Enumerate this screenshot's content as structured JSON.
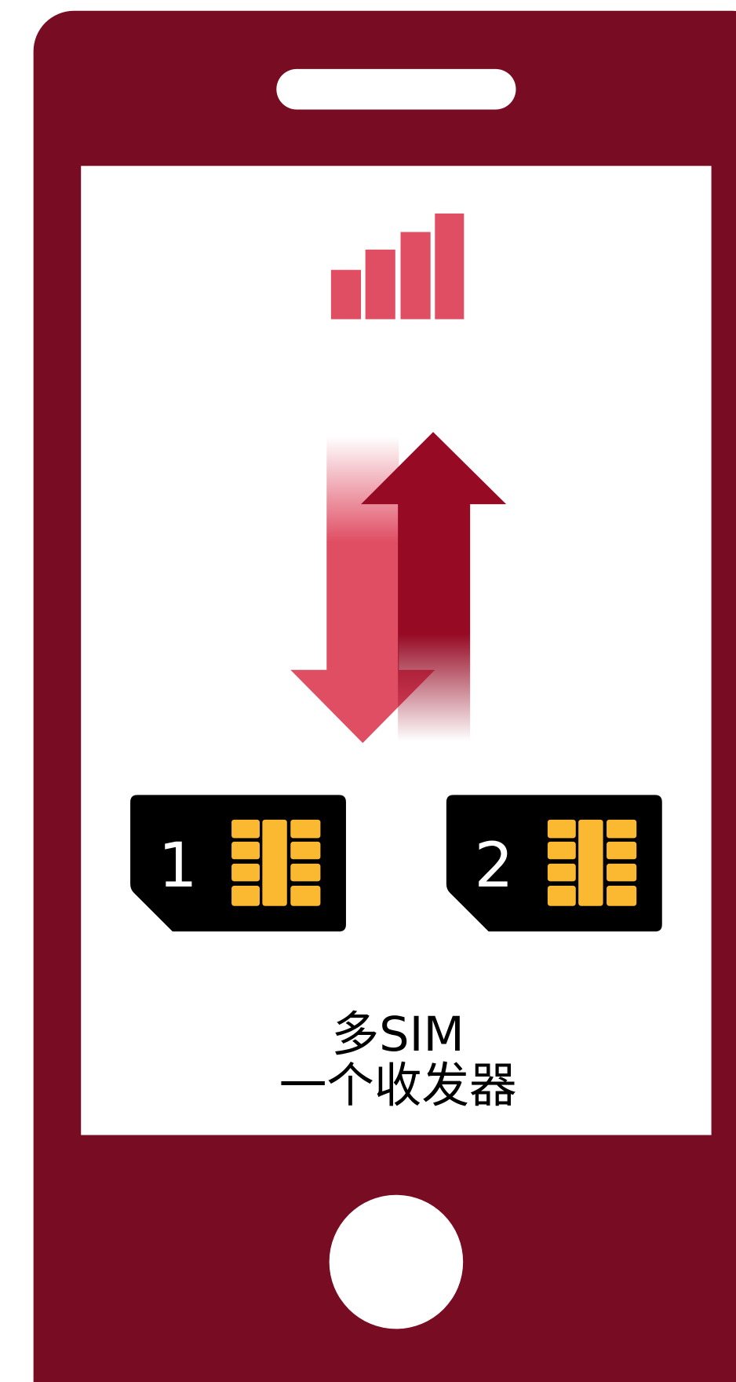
{
  "sim_cards": [
    {
      "label": "1"
    },
    {
      "label": "2"
    }
  ],
  "caption": {
    "lines": [
      "多SIM",
      "一个收发器"
    ]
  }
}
